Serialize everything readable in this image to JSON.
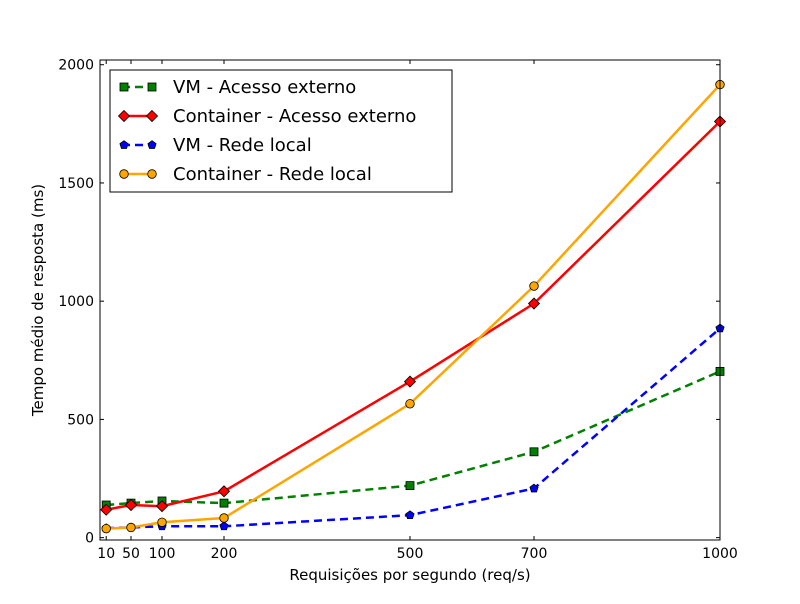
{
  "chart_data": {
    "type": "line",
    "title": "",
    "xlabel": "Requisições por segundo (req/s)",
    "ylabel": "Tempo médio de resposta (ms)",
    "x": [
      10,
      50,
      100,
      200,
      500,
      700,
      1000
    ],
    "xlim": [
      0,
      1000
    ],
    "ylim": [
      -10,
      2020
    ],
    "xticks": [
      10,
      50,
      100,
      200,
      500,
      700,
      1000
    ],
    "xtick_labels": [
      "10",
      "50",
      "100",
      "200",
      "500",
      "700",
      "1000"
    ],
    "yticks": [
      0,
      500,
      1000,
      1500,
      2000
    ],
    "ytick_labels": [
      "0",
      "500",
      "1000",
      "1500",
      "2000"
    ],
    "grid": false,
    "legend_position": "top-left",
    "series": [
      {
        "name": "VM - Acesso externo",
        "values": [
          138,
          146,
          155,
          146,
          220,
          363,
          703
        ],
        "color": "#008000",
        "dash": "dashed",
        "marker": "square"
      },
      {
        "name": "Container - Acesso externo",
        "values": [
          118,
          138,
          133,
          196,
          660,
          990,
          1760
        ],
        "color": "#ff0000",
        "dash": "solid",
        "marker": "diamond"
      },
      {
        "name": "VM - Rede local",
        "values": [
          40,
          43,
          48,
          48,
          95,
          208,
          885
        ],
        "color": "#0000ff",
        "dash": "dashed",
        "marker": "pentagon"
      },
      {
        "name": "Container - Rede local",
        "values": [
          38,
          43,
          65,
          83,
          566,
          1064,
          1916
        ],
        "color": "#ffa500",
        "dash": "solid",
        "marker": "circle"
      }
    ]
  }
}
